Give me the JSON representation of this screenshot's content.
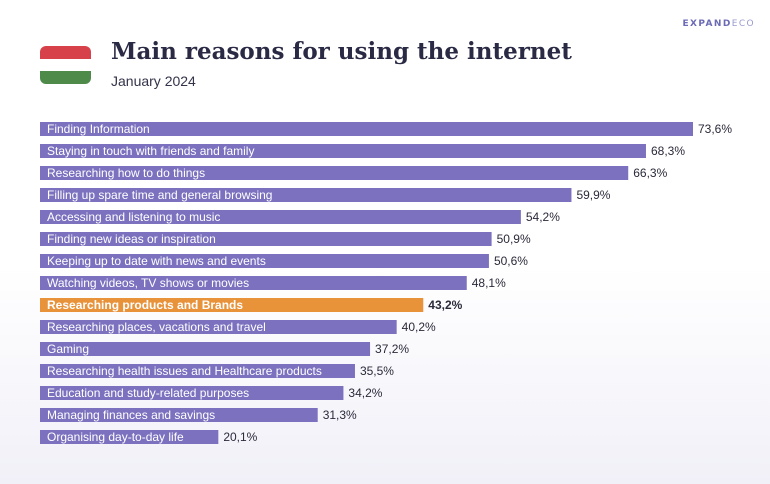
{
  "brand": {
    "bold": "EXPAND",
    "light": "ECO"
  },
  "header": {
    "title": "Main reasons for using the internet",
    "subtitle": "January 2024"
  },
  "flag": {
    "name": "hungary-flag-icon",
    "colors": [
      "#d7424a",
      "#ffffff",
      "#4e8a4a"
    ]
  },
  "colors": {
    "bar": "#7b71bf",
    "highlight": "#e8923a",
    "label_text": "#ffffff",
    "value_text": "#2a2a3a"
  },
  "chart_data": {
    "type": "bar",
    "orientation": "horizontal",
    "categories": [
      "Finding Information",
      "Staying in touch with friends and family",
      "Researching how to do things",
      "Filling up spare time and general browsing",
      "Accessing and listening to music",
      "Finding new ideas or inspiration",
      "Keeping up to date with news and events",
      "Watching videos, TV shows or movies",
      "Researching products and Brands",
      "Researching places, vacations and travel",
      "Gaming",
      "Researching health issues and Healthcare products",
      "Education and study-related purposes",
      "Managing finances and savings",
      "Organising day-to-day life"
    ],
    "values": [
      73.6,
      68.3,
      66.3,
      59.9,
      54.2,
      50.9,
      50.6,
      48.1,
      43.2,
      40.2,
      37.2,
      35.5,
      34.2,
      31.3,
      20.1
    ],
    "value_labels": [
      "73,6%",
      "68,3%",
      "66,3%",
      "59,9%",
      "54,2%",
      "50,9%",
      "50,6%",
      "48,1%",
      "43,2%",
      "40,2%",
      "37,2%",
      "35,5%",
      "34,2%",
      "31,3%",
      "20,1%"
    ],
    "highlight_index": 8,
    "xlim": [
      0,
      100
    ],
    "title": "Main reasons for using the internet",
    "subtitle": "January 2024",
    "xlabel": "",
    "ylabel": "",
    "grid": false
  }
}
